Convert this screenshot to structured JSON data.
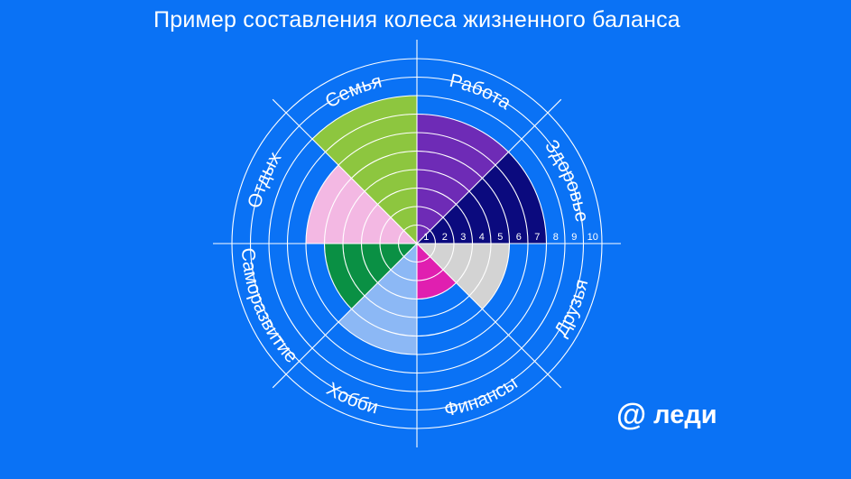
{
  "title": "Пример составления колеса жизненного баланса",
  "logo": {
    "symbol": "@",
    "text": "леди"
  },
  "scale_labels": [
    "1",
    "2",
    "3",
    "4",
    "5",
    "6",
    "7",
    "8",
    "9",
    "10"
  ],
  "chart_data": {
    "type": "radial-bar",
    "max": 10,
    "sectors": [
      {
        "name": "Работа",
        "value": 7,
        "color": "#6e2bb6"
      },
      {
        "name": "Здоровье",
        "value": 7,
        "color": "#0b0a7e"
      },
      {
        "name": "Друзья",
        "value": 5,
        "color": "#d3d3d3"
      },
      {
        "name": "Финансы",
        "value": 3,
        "color": "#e01fb0"
      },
      {
        "name": "Хобби",
        "value": 6,
        "color": "#8cb8f5"
      },
      {
        "name": "Саморазвитие",
        "value": 5,
        "color": "#0a9044"
      },
      {
        "name": "Отдых",
        "value": 6,
        "color": "#f3b8e3"
      },
      {
        "name": "Семья",
        "value": 8,
        "color": "#8dc63f"
      }
    ]
  }
}
